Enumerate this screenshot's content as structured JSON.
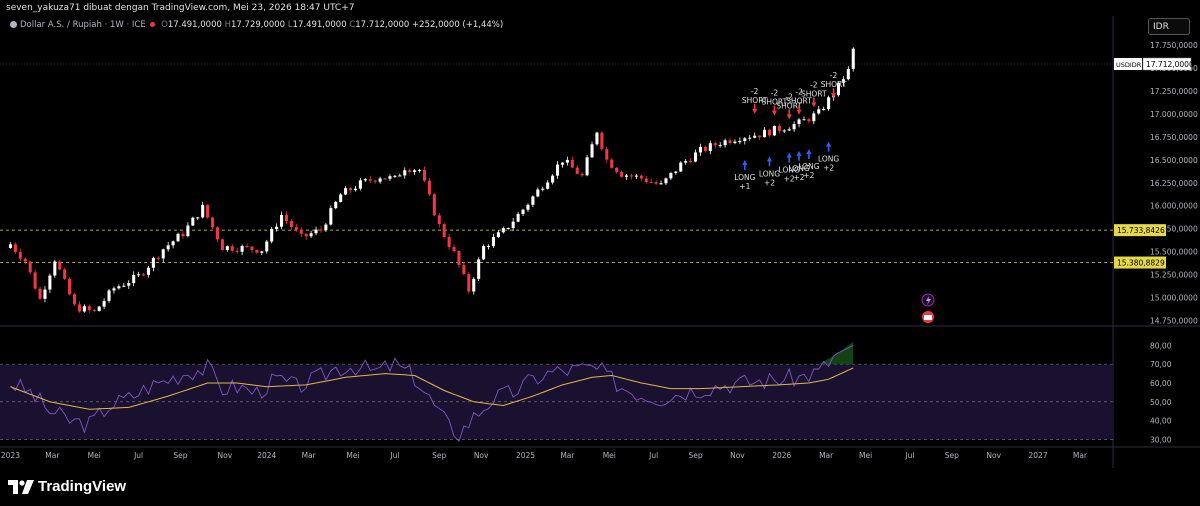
{
  "header": {
    "caption": "seven_yakuza71 dibuat dengan TradingView.com, Mei 23, 2026 18:47 UTC+7"
  },
  "legend": {
    "symbol": "Dollar A.S. / Rupiah · 1W · ICE",
    "open_label": "O",
    "open": "17.491,0000",
    "high_label": "H",
    "high": "17.729,0000",
    "low_label": "L",
    "low": "17.491,0000",
    "close_label": "C",
    "close": "17.712,0000",
    "change": "+252,0000 (+1,44%)"
  },
  "currency_badge": "IDR",
  "brand": "TradingView",
  "colors": {
    "up": "#ffffff",
    "down": "#f23645",
    "rsi": "#7e57c2",
    "rsi_ma": "#e0b84a",
    "level_line": "#e5d84a",
    "sell_arrow": "#f23645",
    "buy_arrow": "#2962ff",
    "rsi_band": "#1a1030"
  },
  "chart_data": {
    "type": "candlestick",
    "title": "Dollar A.S. / Rupiah · 1W · ICE",
    "timeframe": "1W",
    "y_axis": {
      "ticks": [
        "17.750,0000",
        "17.500,0000",
        "17.250,0000",
        "17.000,0000",
        "16.750,0000",
        "16.500,0000",
        "16.250,0000",
        "16.000,0000",
        "15.750,0000",
        "15.500,0000",
        "15.250,0000",
        "15.000,0000",
        "14.750,0000"
      ],
      "tick_values": [
        17750,
        17500,
        17250,
        17000,
        16750,
        16500,
        16250,
        16000,
        15750,
        15500,
        15250,
        15000,
        14750
      ],
      "range": [
        14700,
        17850
      ]
    },
    "x_axis": {
      "ticks": [
        "2023",
        "Mar",
        "Mei",
        "Jul",
        "Sep",
        "Nov",
        "2024",
        "Mar",
        "Mei",
        "Jul",
        "Sep",
        "Nov",
        "2025",
        "Mar",
        "Mei",
        "Jul",
        "Sep",
        "Nov",
        "2026",
        "Mar",
        "Mei",
        "Jul",
        "Sep",
        "Nov",
        "2027",
        "Mar"
      ],
      "tick_weeks": [
        0,
        8.5,
        17,
        26,
        34.5,
        43.5,
        52,
        60.5,
        69.5,
        78,
        87,
        95.5,
        104.5,
        113,
        121.5,
        130.5,
        139,
        147.5,
        156.5,
        165.5,
        173.5,
        182.5,
        191,
        199.5,
        208.5,
        217
      ]
    },
    "last_price_label": "USDIDR",
    "last_price": "17.712,0000",
    "levels": [
      {
        "label": "15.733,8426",
        "value": 15733.8426
      },
      {
        "label": "15.380,8829",
        "value": 15380.8829
      }
    ],
    "anchor_points": [
      [
        0,
        15580
      ],
      [
        3,
        15400
      ],
      [
        6,
        14980
      ],
      [
        9,
        15420
      ],
      [
        13,
        14900
      ],
      [
        17,
        14840
      ],
      [
        21,
        15100
      ],
      [
        26,
        15230
      ],
      [
        31,
        15530
      ],
      [
        35,
        15700
      ],
      [
        39,
        15980
      ],
      [
        43,
        15550
      ],
      [
        47,
        15540
      ],
      [
        51,
        15520
      ],
      [
        55,
        15900
      ],
      [
        59,
        15650
      ],
      [
        63,
        15740
      ],
      [
        67,
        16120
      ],
      [
        71,
        16240
      ],
      [
        75,
        16320
      ],
      [
        78,
        16290
      ],
      [
        80,
        16420
      ],
      [
        83,
        16390
      ],
      [
        87,
        15780
      ],
      [
        90,
        15480
      ],
      [
        93,
        15080
      ],
      [
        96,
        15550
      ],
      [
        100,
        15720
      ],
      [
        104,
        15960
      ],
      [
        108,
        16230
      ],
      [
        112,
        16500
      ],
      [
        116,
        16320
      ],
      [
        119,
        16820
      ],
      [
        121,
        16500
      ],
      [
        124,
        16350
      ],
      [
        128,
        16300
      ],
      [
        132,
        16220
      ],
      [
        136,
        16450
      ],
      [
        140,
        16600
      ],
      [
        144,
        16690
      ],
      [
        148,
        16750
      ],
      [
        152,
        16780
      ],
      [
        156,
        16840
      ],
      [
        160,
        16900
      ],
      [
        164,
        17010
      ],
      [
        168,
        17300
      ],
      [
        170,
        17491
      ],
      [
        171,
        17712
      ]
    ],
    "annotations": {
      "sell": [
        {
          "week": 151,
          "text": [
            "-2",
            "SHORT"
          ],
          "level": 16980
        },
        {
          "week": 155,
          "text": [
            "-2",
            "SHORT"
          ],
          "level": 16960
        },
        {
          "week": 158,
          "text": [
            "-2",
            "SHORT"
          ],
          "level": 16920
        },
        {
          "week": 160,
          "text": [
            "-2",
            "SHORT"
          ],
          "level": 16970
        },
        {
          "week": 163,
          "text": [
            "-2",
            "SHORT"
          ],
          "level": 17050
        },
        {
          "week": 167,
          "text": [
            "-2",
            "SHORT"
          ],
          "level": 17150
        }
      ],
      "buy": [
        {
          "week": 149,
          "text": [
            "LONG",
            "+1"
          ],
          "level": 16520
        },
        {
          "week": 154,
          "text": [
            "LONG",
            "+2"
          ],
          "level": 16560
        },
        {
          "week": 158,
          "text": [
            "LONG",
            "+2"
          ],
          "level": 16600
        },
        {
          "week": 160,
          "text": [
            "LONG",
            "+2"
          ],
          "level": 16620
        },
        {
          "week": 162,
          "text": [
            "LONG",
            "+2"
          ],
          "level": 16640
        },
        {
          "week": 166,
          "text": [
            "LONG",
            "+2"
          ],
          "level": 16720
        }
      ]
    },
    "rsi": {
      "ticks": [
        "80,00",
        "70,00",
        "60,00",
        "50,00",
        "40,00",
        "30,00"
      ],
      "tick_values": [
        80,
        70,
        60,
        50,
        40,
        30
      ],
      "range": [
        27,
        85
      ],
      "bands": [
        70,
        50,
        30
      ],
      "anchor_points": [
        [
          0,
          60
        ],
        [
          4,
          55
        ],
        [
          8,
          45
        ],
        [
          12,
          40
        ],
        [
          16,
          38
        ],
        [
          20,
          48
        ],
        [
          24,
          52
        ],
        [
          28,
          58
        ],
        [
          32,
          62
        ],
        [
          36,
          66
        ],
        [
          40,
          68
        ],
        [
          43,
          57
        ],
        [
          46,
          58
        ],
        [
          50,
          55
        ],
        [
          54,
          62
        ],
        [
          58,
          58
        ],
        [
          62,
          62
        ],
        [
          66,
          68
        ],
        [
          70,
          69
        ],
        [
          74,
          66
        ],
        [
          78,
          70
        ],
        [
          82,
          63
        ],
        [
          86,
          48
        ],
        [
          89,
          37
        ],
        [
          91,
          33
        ],
        [
          94,
          42
        ],
        [
          98,
          52
        ],
        [
          102,
          55
        ],
        [
          106,
          62
        ],
        [
          110,
          66
        ],
        [
          114,
          67
        ],
        [
          118,
          68
        ],
        [
          120,
          66
        ],
        [
          124,
          58
        ],
        [
          128,
          54
        ],
        [
          132,
          52
        ],
        [
          136,
          55
        ],
        [
          140,
          57
        ],
        [
          144,
          59
        ],
        [
          148,
          60
        ],
        [
          152,
          61
        ],
        [
          156,
          62
        ],
        [
          160,
          63
        ],
        [
          164,
          66
        ],
        [
          168,
          76
        ],
        [
          171,
          80
        ]
      ],
      "ma_anchor_points": [
        [
          0,
          58
        ],
        [
          8,
          50
        ],
        [
          16,
          46
        ],
        [
          24,
          47
        ],
        [
          32,
          53
        ],
        [
          40,
          60
        ],
        [
          46,
          60
        ],
        [
          52,
          58
        ],
        [
          60,
          59
        ],
        [
          68,
          63
        ],
        [
          76,
          65
        ],
        [
          82,
          64
        ],
        [
          88,
          56
        ],
        [
          94,
          50
        ],
        [
          100,
          48
        ],
        [
          106,
          53
        ],
        [
          112,
          59
        ],
        [
          118,
          63
        ],
        [
          122,
          64
        ],
        [
          128,
          60
        ],
        [
          134,
          57
        ],
        [
          140,
          57
        ],
        [
          148,
          58
        ],
        [
          156,
          59
        ],
        [
          162,
          60
        ],
        [
          166,
          62
        ],
        [
          171,
          68
        ]
      ]
    }
  }
}
